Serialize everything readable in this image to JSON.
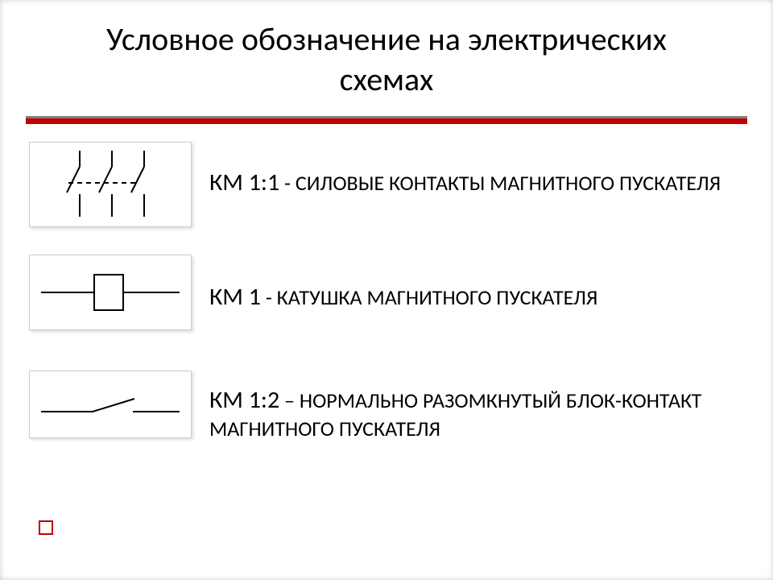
{
  "background_color": "#ffffff",
  "title": {
    "text": "Условное обозначение на электрических\nсхемах",
    "fontsize": 40,
    "color": "#000000"
  },
  "divider": {
    "top_color": "#808080",
    "top_height": 3,
    "red_color": "#c00000",
    "red_height": 7
  },
  "items": [
    {
      "code": "КМ 1:1",
      "sep": " - ",
      "label": "СИЛОВЫЕ КОНТАКТЫ МАГНИТНОГО ПУСКАТЕЛЯ",
      "code_fontsize": 30,
      "label_fontsize": 26,
      "symbol": {
        "type": "power-contacts-3pole",
        "stroke": "#000000",
        "stroke_width": 2
      }
    },
    {
      "code": "КМ 1",
      "sep": " - ",
      "label": "КАТУШКА МАГНИТНОГО ПУСКАТЕЛЯ",
      "code_fontsize": 30,
      "label_fontsize": 26,
      "symbol": {
        "type": "coil",
        "stroke": "#000000",
        "stroke_width": 2
      }
    },
    {
      "code": "КМ 1:2",
      "sep": " – ",
      "label": "НОРМАЛЬНО РАЗОМКНУТЫЙ БЛОК-КОНТАКТ МАГНИТНОГО ПУСКАТЕЛЯ",
      "code_fontsize": 30,
      "label_fontsize": 26,
      "symbol": {
        "type": "no-contact",
        "stroke": "#000000",
        "stroke_width": 2
      }
    }
  ],
  "bullet": {
    "border_color": "#c00000",
    "fill": "#ffffff",
    "size": 14
  }
}
